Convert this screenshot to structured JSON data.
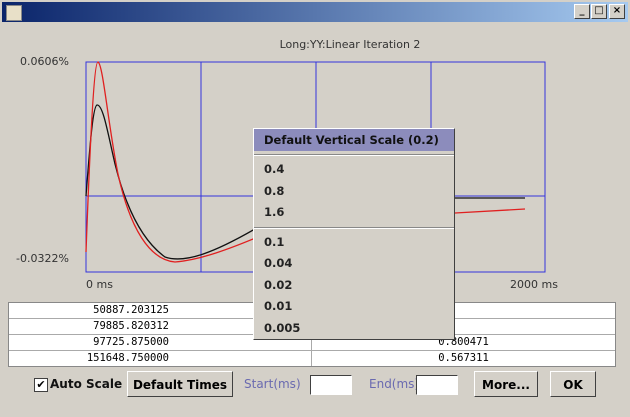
{
  "plot": {
    "title": "Long:YY:Linear   Iteration 2",
    "y_max_label": "0.0606%",
    "y_min_label": "-0.0322%",
    "x_start_label": "0 ms",
    "x_end_label": "2000 ms"
  },
  "table": {
    "rows": [
      [
        "50887.203125"
      ],
      [
        "79885.820312"
      ],
      [
        "97725.875000",
        "0.800471"
      ],
      [
        "151648.750000",
        "0.567311"
      ]
    ]
  },
  "menu": {
    "header": "Default Vertical Scale  (0.2)",
    "items_upper": [
      "0.4",
      "0.8",
      "1.6"
    ],
    "items_lower": [
      "0.1",
      "0.04",
      "0.02",
      "0.01",
      "0.005"
    ]
  },
  "toolbar": {
    "auto_scale": "Auto Scale",
    "default_times": "Default Times",
    "start": "Start(ms)",
    "end": "End(ms)",
    "more": "More...",
    "ok": "OK"
  }
}
